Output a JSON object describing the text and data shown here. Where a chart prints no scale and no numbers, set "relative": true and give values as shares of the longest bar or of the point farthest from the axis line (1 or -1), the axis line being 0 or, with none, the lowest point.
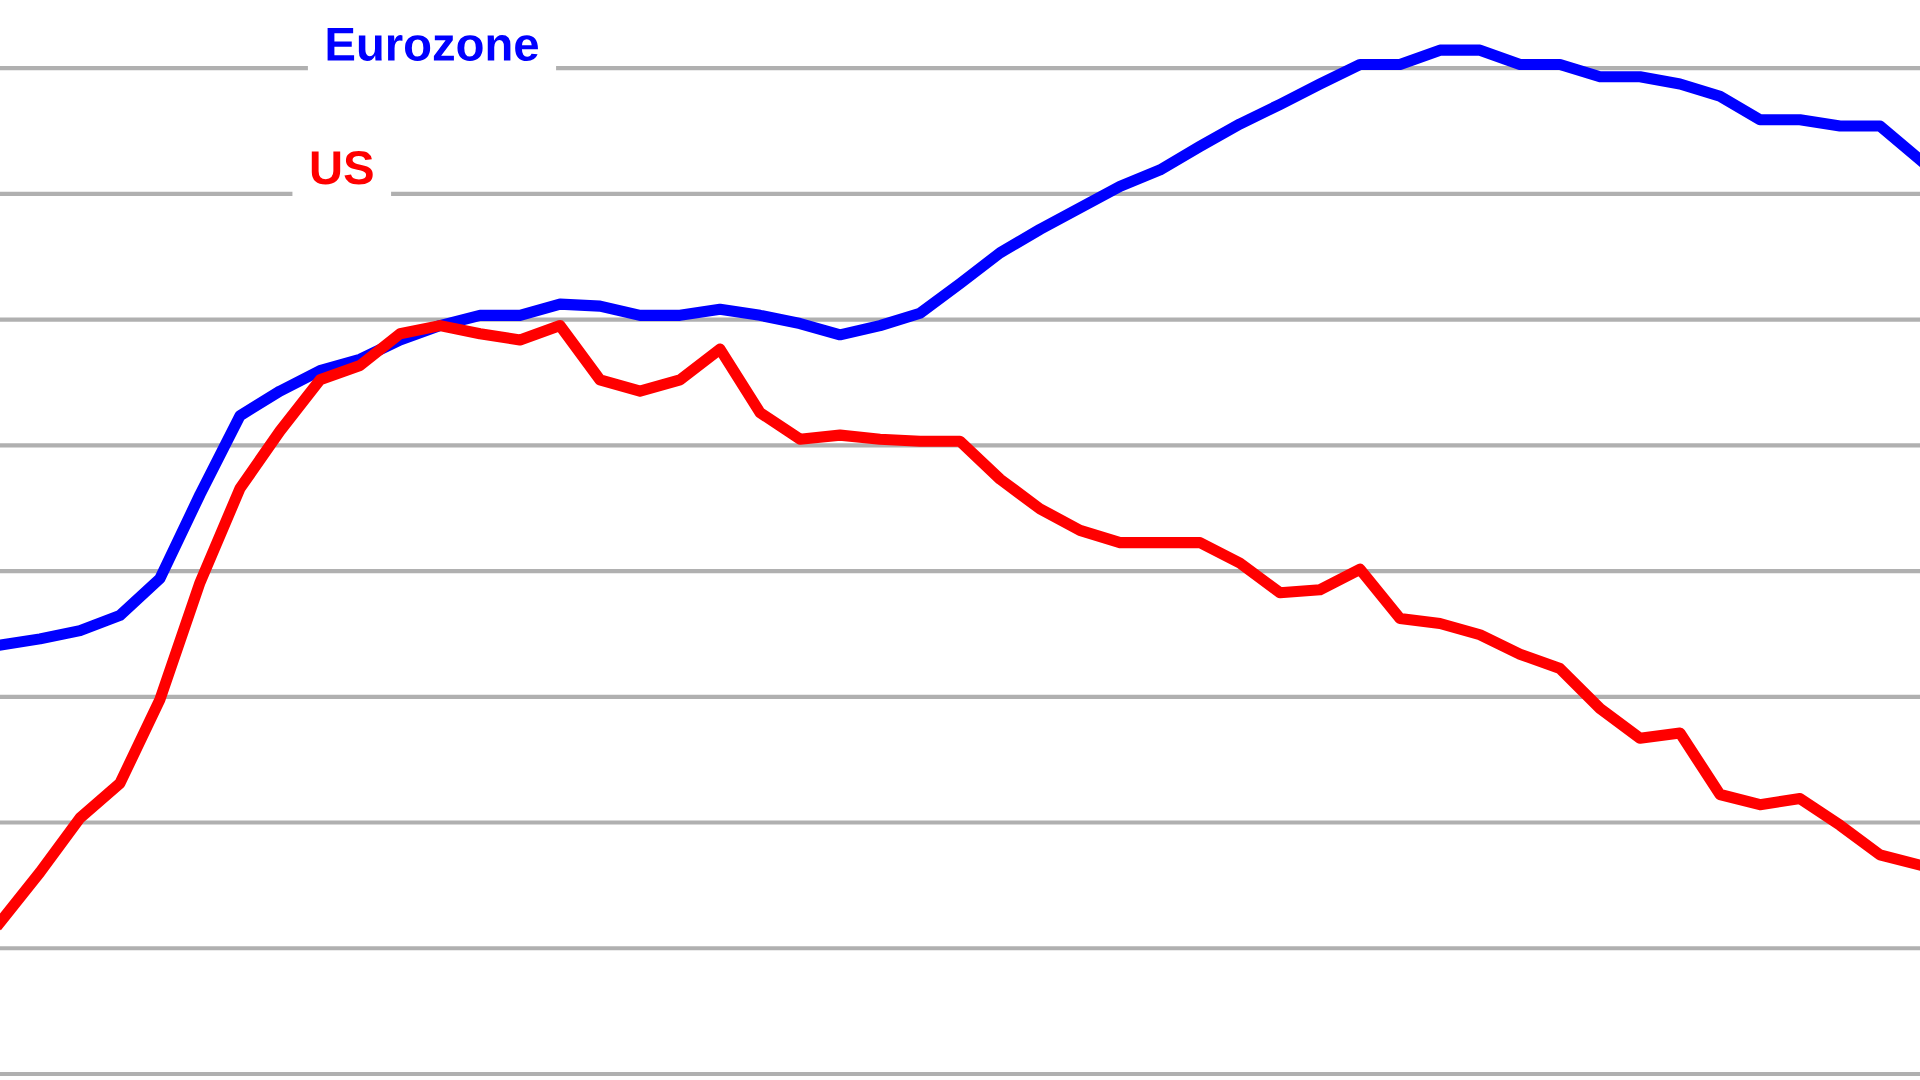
{
  "chart_data": {
    "type": "line",
    "relative": true,
    "grid": "y",
    "legend": false,
    "marker": "none",
    "line_style": "solid",
    "categories": [
      null,
      null,
      null,
      null,
      null,
      null,
      null,
      null,
      null,
      null,
      null,
      null,
      null,
      null,
      null,
      null,
      null,
      null,
      null,
      null,
      null,
      null,
      null,
      null,
      null,
      null,
      null,
      null,
      null,
      null,
      null,
      null,
      null,
      null,
      null,
      null,
      null,
      null,
      null,
      null,
      null,
      null,
      null,
      null,
      null,
      null,
      null,
      null,
      null
    ],
    "series": [
      {
        "name": "Eurozone",
        "color": "#0000ff",
        "values": [
          0.419,
          0.425,
          0.433,
          0.448,
          0.484,
          0.566,
          0.643,
          0.667,
          0.687,
          0.698,
          0.717,
          0.731,
          0.741,
          0.741,
          0.752,
          0.75,
          0.741,
          0.741,
          0.747,
          0.741,
          0.733,
          0.722,
          0.731,
          0.743,
          0.772,
          0.802,
          0.825,
          0.846,
          0.867,
          0.883,
          0.906,
          0.928,
          0.947,
          0.967,
          0.986,
          0.986,
          1,
          1,
          0.986,
          0.986,
          0.974,
          0.974,
          0.967,
          0.955,
          0.932,
          0.932,
          0.926,
          0.926,
          0.893
        ]
      },
      {
        "name": "US",
        "color": "#ff0000",
        "values": [
          0.148,
          0.197,
          0.25,
          0.284,
          0.366,
          0.48,
          0.572,
          0.628,
          0.678,
          0.692,
          0.723,
          0.731,
          0.723,
          0.717,
          0.731,
          0.678,
          0.667,
          0.678,
          0.708,
          0.646,
          0.62,
          0.624,
          0.62,
          0.618,
          0.618,
          0.581,
          0.552,
          0.531,
          0.519,
          0.519,
          0.519,
          0.499,
          0.47,
          0.473,
          0.493,
          0.445,
          0.44,
          0.429,
          0.41,
          0.396,
          0.357,
          0.328,
          0.333,
          0.273,
          0.263,
          0.269,
          0.243,
          0.214,
          0.204
        ]
      }
    ]
  }
}
